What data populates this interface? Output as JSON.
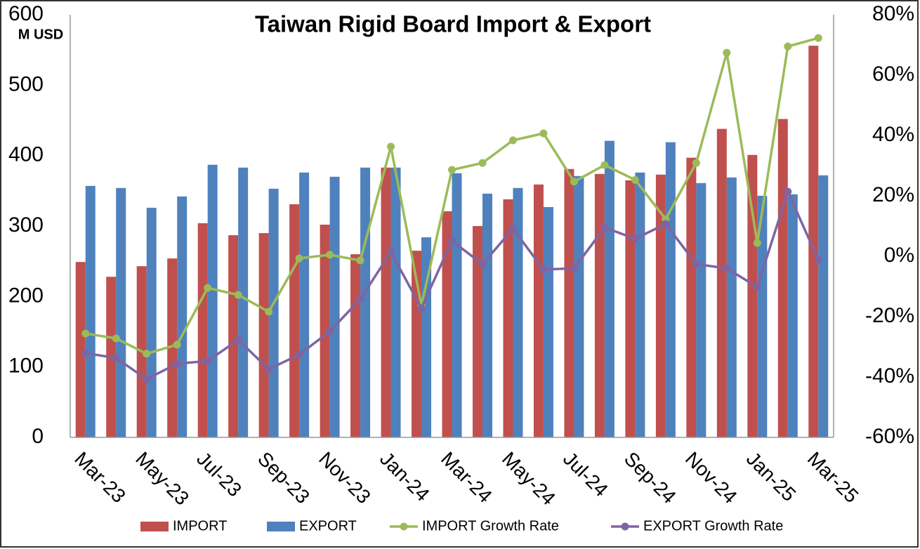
{
  "chart_data": {
    "type": "bar",
    "title": "Taiwan Rigid Board Import & Export",
    "y_unit": "M USD",
    "categories": [
      "Mar-23",
      null,
      "May-23",
      null,
      "Jul-23",
      null,
      "Sep-23",
      null,
      "Nov-23",
      null,
      "Jan-24",
      null,
      "Mar-24",
      null,
      "May-24",
      null,
      "Jul-24",
      null,
      "Sep-24",
      null,
      "Nov-24",
      null,
      "Jan-25",
      null,
      "Mar-25"
    ],
    "series": [
      {
        "name": "IMPORT",
        "type": "bar",
        "color": "#c0504d",
        "values": [
          249,
          228,
          243,
          254,
          304,
          287,
          290,
          331,
          302,
          260,
          383,
          265,
          321,
          300,
          338,
          359,
          381,
          374,
          365,
          373,
          397,
          438,
          401,
          452,
          556
        ]
      },
      {
        "name": "EXPORT",
        "type": "bar",
        "color": "#4f81bd",
        "values": [
          357,
          354,
          326,
          342,
          387,
          383,
          353,
          376,
          370,
          383,
          383,
          284,
          375,
          346,
          354,
          327,
          371,
          421,
          376,
          419,
          361,
          369,
          343,
          345,
          372
        ]
      },
      {
        "name": "IMPORT Growth Rate",
        "type": "line",
        "axis": "y2",
        "color": "#9bbb59",
        "values": [
          -25.6,
          -27.2,
          -32.3,
          -29.3,
          -10.5,
          -12.8,
          -18.4,
          -0.7,
          0.5,
          -1.4,
          36.3,
          -16.3,
          28.6,
          30.9,
          38.4,
          40.7,
          24.7,
          30.2,
          25.3,
          12.3,
          30.9,
          67.4,
          4.4,
          69.5,
          72.3
        ]
      },
      {
        "name": "EXPORT Growth Rate",
        "type": "line",
        "axis": "y2",
        "color": "#8064a2",
        "values": [
          -32.1,
          -33.7,
          -40.7,
          -35.6,
          -34.7,
          -27.7,
          -37.4,
          -32.6,
          -24.9,
          -14.2,
          1.4,
          -17.2,
          5.1,
          -2.6,
          9.1,
          -4.4,
          -4.0,
          9.5,
          5.8,
          10.7,
          -2.6,
          -4.0,
          -10.2,
          21.4,
          -1.2
        ]
      }
    ],
    "ylim": [
      0,
      600
    ],
    "yticks": [
      0,
      100,
      200,
      300,
      400,
      500,
      600
    ],
    "y2lim": [
      -60,
      80
    ],
    "y2ticks": [
      {
        "value": -60,
        "label": "-60%"
      },
      {
        "value": -40,
        "label": "-40%"
      },
      {
        "value": -20,
        "label": "-20%"
      },
      {
        "value": 0,
        "label": "0%"
      },
      {
        "value": 20,
        "label": "20%"
      },
      {
        "value": 40,
        "label": "40%"
      },
      {
        "value": 60,
        "label": "60%"
      },
      {
        "value": 80,
        "label": "80%"
      }
    ],
    "grid": false,
    "legend": "bottom"
  }
}
